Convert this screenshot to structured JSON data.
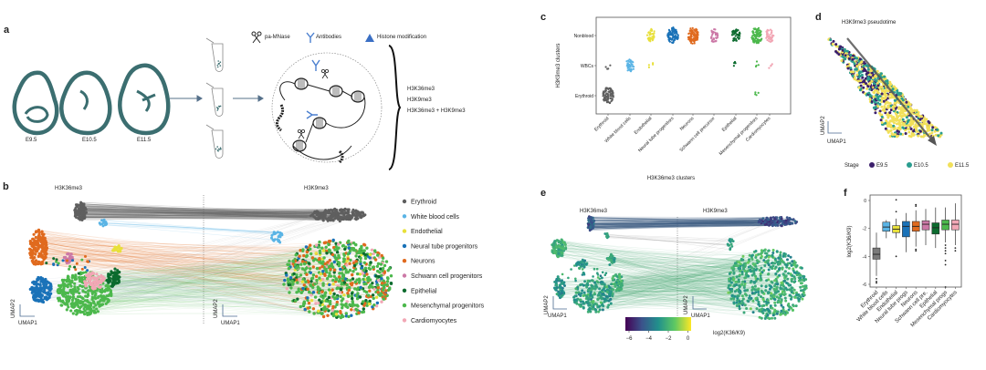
{
  "panel_labels": {
    "a": "a",
    "b": "b",
    "c": "c",
    "d": "d",
    "e": "e",
    "f": "f"
  },
  "panel_a": {
    "stages": [
      "E9.5",
      "E10.5",
      "E11.5"
    ],
    "legend": {
      "enzyme": "pa-MNase",
      "antibody": "Antibodies",
      "histone": "Histone modification"
    },
    "targets": [
      "H3K36me3",
      "H3K9me3",
      "H3K36me3 + H3K9me3"
    ],
    "colors": {
      "embryo": "#3b6e70",
      "antibody": "#4a7fcf"
    }
  },
  "panel_b": {
    "left_title": "H3K36me3",
    "right_title": "H3K9me3",
    "axis_x": "UMAP1",
    "axis_y": "UMAP2",
    "legend": [
      {
        "label": "Erythroid",
        "color": "#5f5f5f"
      },
      {
        "label": "White blood cells",
        "color": "#5ab4e5"
      },
      {
        "label": "Endothelial",
        "color": "#e8e03a"
      },
      {
        "label": "Neural tube progenitors",
        "color": "#1a72b8"
      },
      {
        "label": "Neurons",
        "color": "#e06a1e"
      },
      {
        "label": "Schwann cell progenitors",
        "color": "#cc79a7"
      },
      {
        "label": "Epithelial",
        "color": "#0b6b2e"
      },
      {
        "label": "Mesenchymal progenitors",
        "color": "#4cb84c"
      },
      {
        "label": "Cardiomyocytes",
        "color": "#f2a7b5"
      }
    ]
  },
  "panel_e": {
    "left_title": "H3K36me3",
    "right_title": "H3K9me3",
    "axis_x": "UMAP1",
    "axis_y": "UMAP2",
    "colorbar": {
      "label": "log2(K36/K9)",
      "ticks": [
        "−6",
        "−4",
        "−2",
        "0"
      ],
      "range": [
        -6.5,
        0.5
      ],
      "colormap": "viridis"
    }
  },
  "chart_data": [
    {
      "panel": "c",
      "type": "scatter",
      "xlabel": "H3K36me3 clusters",
      "ylabel": "H3K9me3 clusters",
      "x_categories": [
        "Erythroid",
        "White blood cells",
        "Endothelial",
        "Neural tube progenitors",
        "Neurons",
        "Schwann cell precursor",
        "Epithelial",
        "Mesenchymal progenitors",
        "Cardiomyocytes"
      ],
      "y_categories": [
        "Nonblood",
        "WBCs",
        "Erythroid"
      ],
      "occupancy": {
        "Nonblood": [
          "none",
          "none",
          "medium",
          "large",
          "large",
          "medium",
          "medium",
          "large",
          "medium"
        ],
        "WBCs": [
          "few",
          "medium",
          "few",
          "none",
          "none",
          "none",
          "few",
          "few",
          "few"
        ],
        "Erythroid": [
          "large",
          "none",
          "none",
          "none",
          "none",
          "none",
          "none",
          "few",
          "none"
        ]
      }
    },
    {
      "panel": "d",
      "type": "scatter",
      "title": "H3K9me3 pseudotime",
      "xlabel": "UMAP1",
      "ylabel": "UMAP2",
      "legend_title": "Stage",
      "series": [
        {
          "name": "E9.5",
          "color": "#3b1f6b"
        },
        {
          "name": "E10.5",
          "color": "#2a9d8f"
        },
        {
          "name": "E11.5",
          "color": "#f1e05a"
        }
      ]
    },
    {
      "panel": "f",
      "type": "box",
      "ylabel": "log2(K36/K9)",
      "yticks": [
        "0",
        "-2",
        "-4",
        "-6"
      ],
      "ylim": [
        -6.3,
        0.3
      ],
      "categories": [
        "Erythroid",
        "White blood cells",
        "Endothelial",
        "Neural tube progs",
        "Neurons",
        "Schwann cell pre.",
        "Epithelial",
        "Mesenchymal progs",
        "Cardiomyocytes"
      ],
      "colors": [
        "#7a7a7a",
        "#5ab4e5",
        "#e8e03a",
        "#1a72b8",
        "#e06a1e",
        "#cc79a7",
        "#0b6b2e",
        "#4cb84c",
        "#f2a7b5"
      ],
      "boxes": [
        {
          "low": -5.4,
          "q1": -4.2,
          "median": -3.85,
          "q3": -3.4,
          "high": -2.3,
          "outliers": [
            -5.6,
            -5.8,
            -5.9
          ]
        },
        {
          "low": -2.7,
          "q1": -2.2,
          "median": -1.9,
          "q3": -1.55,
          "high": -1.4,
          "outliers": []
        },
        {
          "low": -2.7,
          "q1": -2.3,
          "median": -2.05,
          "q3": -1.8,
          "high": -1.3,
          "outliers": [
            0.05,
            -0.8,
            -4.0
          ]
        },
        {
          "low": -3.7,
          "q1": -2.6,
          "median": -1.85,
          "q3": -1.5,
          "high": -0.9,
          "outliers": []
        },
        {
          "low": -3.3,
          "q1": -2.2,
          "median": -1.85,
          "q3": -1.5,
          "high": -0.7,
          "outliers": [
            -0.3,
            -0.4,
            -3.5,
            -3.6
          ]
        },
        {
          "low": -3.2,
          "q1": -2.1,
          "median": -1.7,
          "q3": -1.45,
          "high": -0.6,
          "outliers": []
        },
        {
          "low": -3.4,
          "q1": -2.4,
          "median": -1.95,
          "q3": -1.6,
          "high": -0.5,
          "outliers": []
        },
        {
          "low": -3.0,
          "q1": -2.1,
          "median": -1.7,
          "q3": -1.4,
          "high": -0.5,
          "outliers": [
            -3.2,
            -3.4,
            -3.6,
            -3.8,
            -4.3,
            -4.6,
            -6.2
          ]
        },
        {
          "low": -3.2,
          "q1": -2.1,
          "median": -1.7,
          "q3": -1.4,
          "high": -0.2,
          "outliers": [
            -3.4,
            -3.6
          ]
        }
      ]
    }
  ]
}
